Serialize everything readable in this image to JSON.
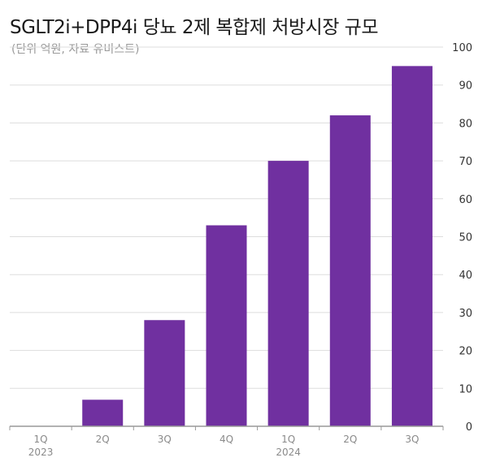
{
  "header": {
    "title": "SGLT2i+DPP4i 당뇨 2제 복합제 처방시장 규모",
    "subtitle": "(단위 억원, 자료 유비스트)"
  },
  "chart_data": {
    "type": "bar",
    "title": "SGLT2i+DPP4i 당뇨 2제 복합제 처방시장 규모",
    "subtitle": "(단위 억원, 자료 유비스트)",
    "categories": [
      "1Q",
      "2Q",
      "3Q",
      "4Q",
      "1Q",
      "2Q",
      "3Q"
    ],
    "category_years": [
      "2023",
      "",
      "",
      "",
      "2024",
      "",
      ""
    ],
    "values": [
      0,
      7,
      28,
      53,
      70,
      82,
      95
    ],
    "ylim": [
      0,
      100
    ],
    "yticks": [
      0,
      10,
      20,
      30,
      40,
      50,
      60,
      70,
      80,
      90,
      100
    ],
    "y_axis_position": "right",
    "grid": true,
    "bar_color": "#7030A0",
    "grid_color": "#dddddd",
    "axis_color": "#999999"
  }
}
